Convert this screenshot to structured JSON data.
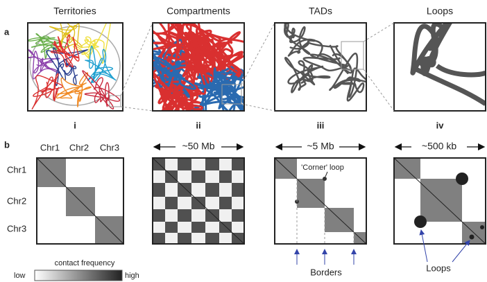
{
  "panel_a": {
    "label": "a",
    "titles": [
      "Territories",
      "Compartments",
      "TADs",
      "Loops"
    ],
    "roman": [
      "i",
      "ii",
      "iii",
      "iv"
    ]
  },
  "panel_b": {
    "label": "b",
    "chr_columns": [
      "Chr1",
      "Chr2",
      "Chr3"
    ],
    "chr_rows": [
      "Chr1",
      "Chr2",
      "Chr3"
    ],
    "scales": [
      "~50 Mb",
      "~5 Mb",
      "~500 kb"
    ],
    "annotations": {
      "corner_loop": "'Corner' loop",
      "borders": "Borders",
      "loops": "Loops"
    },
    "legend": {
      "title": "contact frequency",
      "low": "low",
      "high": "high"
    }
  }
}
